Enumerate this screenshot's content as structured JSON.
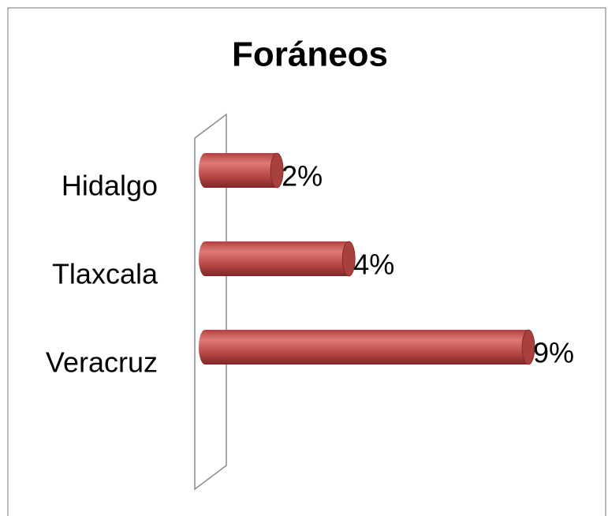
{
  "chart_data": {
    "type": "bar3d-horizontal",
    "title": "Foráneos",
    "categories": [
      "Hidalgo",
      "Tlaxcala",
      "Veracruz"
    ],
    "values": [
      2,
      4,
      9
    ],
    "value_labels": [
      "2%",
      "4%",
      "9%"
    ],
    "color": "#c0504d"
  }
}
